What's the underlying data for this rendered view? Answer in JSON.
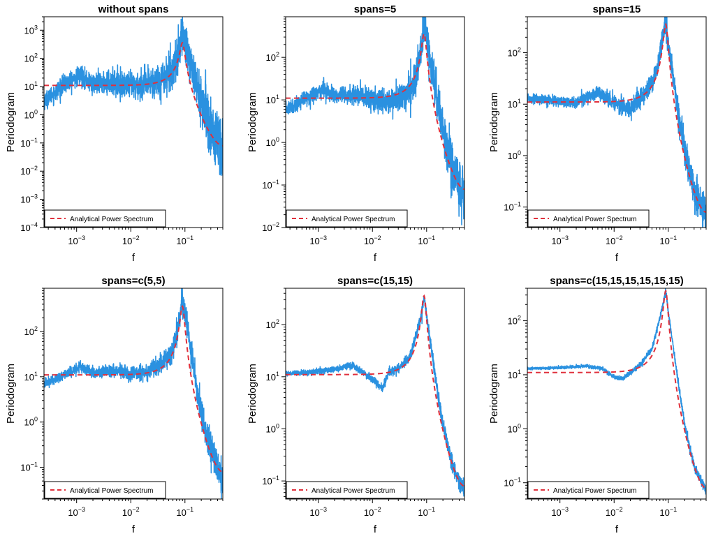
{
  "colors": {
    "periodogram": "#2a91e0",
    "analytical": "#e0303c",
    "axis": "#000000",
    "background": "#ffffff"
  },
  "chart_data": [
    {
      "type": "line",
      "title": "without spans",
      "xlabel": "f",
      "ylabel": "Periodogram",
      "x_scale": "log",
      "y_scale": "log",
      "xlim": [
        0.00025,
        0.5
      ],
      "ylim": [
        0.0001,
        3000
      ],
      "x_ticks": [
        {
          "base": "10",
          "exp": "−3",
          "value": 0.001
        },
        {
          "base": "10",
          "exp": "−2",
          "value": 0.01
        },
        {
          "base": "10",
          "exp": "−1",
          "value": 0.1
        }
      ],
      "y_ticks": [
        {
          "base": "10",
          "exp": "−4",
          "value": 0.0001
        },
        {
          "base": "10",
          "exp": "−3",
          "value": 0.001
        },
        {
          "base": "10",
          "exp": "−2",
          "value": 0.01
        },
        {
          "base": "10",
          "exp": "−1",
          "value": 0.1
        },
        {
          "base": "10",
          "exp": "0",
          "value": 1
        },
        {
          "base": "10",
          "exp": "1",
          "value": 10
        },
        {
          "base": "10",
          "exp": "2",
          "value": 100
        },
        {
          "base": "10",
          "exp": "3",
          "value": 1000
        }
      ],
      "legend": {
        "position": "bottom-left",
        "entries": [
          "Analytical Power Spectrum"
        ]
      },
      "noise_level": 1.0,
      "series": [
        {
          "name": "Analytical Power Spectrum",
          "style": "dashed",
          "curve": {
            "base": 11,
            "peak_f": 0.09,
            "peak_value": 320,
            "high_f_value": 0.09
          }
        },
        {
          "style": "solid",
          "x": [
            0.00025,
            0.0006,
            0.0012,
            0.002,
            0.005,
            0.01,
            0.02,
            0.04,
            0.06,
            0.08,
            0.09,
            0.1,
            0.15,
            0.2,
            0.3,
            0.5
          ],
          "values": [
            3,
            12,
            25,
            12,
            14,
            10,
            12,
            20,
            45,
            200,
            800,
            400,
            20,
            3,
            0.3,
            0.05
          ]
        }
      ]
    },
    {
      "type": "line",
      "title": "spans=5",
      "xlabel": "f",
      "ylabel": "Periodogram",
      "x_scale": "log",
      "y_scale": "log",
      "xlim": [
        0.00025,
        0.5
      ],
      "ylim": [
        0.01,
        900
      ],
      "x_ticks": [
        {
          "base": "10",
          "exp": "−3",
          "value": 0.001
        },
        {
          "base": "10",
          "exp": "−2",
          "value": 0.01
        },
        {
          "base": "10",
          "exp": "−1",
          "value": 0.1
        }
      ],
      "y_ticks": [
        {
          "base": "10",
          "exp": "−2",
          "value": 0.01
        },
        {
          "base": "10",
          "exp": "−1",
          "value": 0.1
        },
        {
          "base": "10",
          "exp": "0",
          "value": 1
        },
        {
          "base": "10",
          "exp": "1",
          "value": 10
        },
        {
          "base": "10",
          "exp": "2",
          "value": 100
        }
      ],
      "legend": {
        "position": "bottom-left",
        "entries": [
          "Analytical Power Spectrum"
        ]
      },
      "noise_level": 0.55,
      "series": [
        {
          "name": "Analytical Power Spectrum",
          "style": "dashed",
          "curve": {
            "base": 11,
            "peak_f": 0.09,
            "peak_value": 320,
            "high_f_value": 0.09
          }
        },
        {
          "style": "solid",
          "x": [
            0.00025,
            0.0006,
            0.0012,
            0.002,
            0.005,
            0.01,
            0.02,
            0.04,
            0.06,
            0.08,
            0.09,
            0.1,
            0.15,
            0.2,
            0.3,
            0.5
          ],
          "values": [
            6,
            11,
            18,
            12,
            13,
            10,
            9,
            12,
            25,
            150,
            600,
            300,
            15,
            2,
            0.25,
            0.05
          ]
        }
      ]
    },
    {
      "type": "line",
      "title": "spans=15",
      "xlabel": "f",
      "ylabel": "Periodogram",
      "x_scale": "log",
      "y_scale": "log",
      "xlim": [
        0.00025,
        0.5
      ],
      "ylim": [
        0.04,
        500
      ],
      "x_ticks": [
        {
          "base": "10",
          "exp": "−3",
          "value": 0.001
        },
        {
          "base": "10",
          "exp": "−2",
          "value": 0.01
        },
        {
          "base": "10",
          "exp": "−1",
          "value": 0.1
        }
      ],
      "y_ticks": [
        {
          "base": "10",
          "exp": "−1",
          "value": 0.1
        },
        {
          "base": "10",
          "exp": "0",
          "value": 1
        },
        {
          "base": "10",
          "exp": "1",
          "value": 10
        },
        {
          "base": "10",
          "exp": "2",
          "value": 100
        }
      ],
      "legend": {
        "position": "bottom-left",
        "entries": [
          "Analytical Power Spectrum"
        ]
      },
      "noise_level": 0.3,
      "series": [
        {
          "name": "Analytical Power Spectrum",
          "style": "dashed",
          "curve": {
            "base": 11,
            "peak_f": 0.09,
            "peak_value": 320,
            "high_f_value": 0.09
          }
        },
        {
          "style": "solid",
          "x": [
            0.00025,
            0.0006,
            0.0012,
            0.002,
            0.005,
            0.01,
            0.02,
            0.04,
            0.06,
            0.08,
            0.09,
            0.1,
            0.15,
            0.2,
            0.3,
            0.5
          ],
          "values": [
            13,
            12,
            11,
            11,
            17,
            11,
            8,
            18,
            40,
            200,
            400,
            150,
            8,
            1.2,
            0.2,
            0.07
          ]
        }
      ]
    },
    {
      "type": "line",
      "title": "spans=c(5,5)",
      "xlabel": "f",
      "ylabel": "Periodogram",
      "x_scale": "log",
      "y_scale": "log",
      "xlim": [
        0.00025,
        0.5
      ],
      "ylim": [
        0.02,
        900
      ],
      "x_ticks": [
        {
          "base": "10",
          "exp": "−3",
          "value": 0.001
        },
        {
          "base": "10",
          "exp": "−2",
          "value": 0.01
        },
        {
          "base": "10",
          "exp": "−1",
          "value": 0.1
        }
      ],
      "y_ticks": [
        {
          "base": "10",
          "exp": "−1",
          "value": 0.1
        },
        {
          "base": "10",
          "exp": "0",
          "value": 1
        },
        {
          "base": "10",
          "exp": "1",
          "value": 10
        },
        {
          "base": "10",
          "exp": "2",
          "value": 100
        }
      ],
      "legend": {
        "position": "bottom-left",
        "entries": [
          "Analytical Power Spectrum"
        ]
      },
      "noise_level": 0.35,
      "series": [
        {
          "name": "Analytical Power Spectrum",
          "style": "dashed",
          "curve": {
            "base": 11,
            "peak_f": 0.09,
            "peak_value": 320,
            "high_f_value": 0.09
          }
        },
        {
          "style": "solid",
          "x": [
            0.00025,
            0.0006,
            0.0012,
            0.002,
            0.005,
            0.01,
            0.02,
            0.04,
            0.06,
            0.08,
            0.09,
            0.1,
            0.15,
            0.2,
            0.3,
            0.5
          ],
          "values": [
            7,
            11,
            17,
            12,
            14,
            11,
            13,
            20,
            40,
            200,
            550,
            250,
            12,
            1.5,
            0.25,
            0.05
          ]
        }
      ]
    },
    {
      "type": "line",
      "title": "spans=c(15,15)",
      "xlabel": "f",
      "ylabel": "Periodogram",
      "x_scale": "log",
      "y_scale": "log",
      "xlim": [
        0.00025,
        0.5
      ],
      "ylim": [
        0.045,
        500
      ],
      "x_ticks": [
        {
          "base": "10",
          "exp": "−3",
          "value": 0.001
        },
        {
          "base": "10",
          "exp": "−2",
          "value": 0.01
        },
        {
          "base": "10",
          "exp": "−1",
          "value": 0.1
        }
      ],
      "y_ticks": [
        {
          "base": "10",
          "exp": "−1",
          "value": 0.1
        },
        {
          "base": "10",
          "exp": "0",
          "value": 1
        },
        {
          "base": "10",
          "exp": "1",
          "value": 10
        },
        {
          "base": "10",
          "exp": "2",
          "value": 100
        }
      ],
      "legend": {
        "position": "bottom-left",
        "entries": [
          "Analytical Power Spectrum"
        ]
      },
      "noise_level": 0.15,
      "series": [
        {
          "name": "Analytical Power Spectrum",
          "style": "dashed",
          "curve": {
            "base": 11,
            "peak_f": 0.09,
            "peak_value": 320,
            "high_f_value": 0.09
          }
        },
        {
          "style": "solid",
          "x": [
            0.00025,
            0.0006,
            0.0012,
            0.002,
            0.004,
            0.006,
            0.01,
            0.015,
            0.02,
            0.03,
            0.05,
            0.08,
            0.09,
            0.1,
            0.15,
            0.2,
            0.3,
            0.5
          ],
          "values": [
            11.5,
            12,
            13,
            14,
            17,
            13,
            9,
            6,
            12,
            14,
            25,
            150,
            340,
            150,
            8,
            1.2,
            0.2,
            0.06
          ]
        }
      ]
    },
    {
      "type": "line",
      "title": "spans=c(15,15,15,15,15,15)",
      "xlabel": "f",
      "ylabel": "Periodogram",
      "x_scale": "log",
      "y_scale": "log",
      "xlim": [
        0.00025,
        0.5
      ],
      "ylim": [
        0.05,
        400
      ],
      "x_ticks": [
        {
          "base": "10",
          "exp": "−3",
          "value": 0.001
        },
        {
          "base": "10",
          "exp": "−2",
          "value": 0.01
        },
        {
          "base": "10",
          "exp": "−1",
          "value": 0.1
        }
      ],
      "y_ticks": [
        {
          "base": "10",
          "exp": "−1",
          "value": 0.1
        },
        {
          "base": "10",
          "exp": "0",
          "value": 1
        },
        {
          "base": "10",
          "exp": "1",
          "value": 10
        },
        {
          "base": "10",
          "exp": "2",
          "value": 100
        }
      ],
      "legend": {
        "position": "bottom-left",
        "entries": [
          "Analytical Power Spectrum"
        ]
      },
      "noise_level": 0.08,
      "series": [
        {
          "name": "Analytical Power Spectrum",
          "style": "dashed",
          "curve": {
            "base": 11,
            "peak_f": 0.09,
            "peak_value": 320,
            "high_f_value": 0.09
          }
        },
        {
          "style": "solid",
          "x": [
            0.00025,
            0.001,
            0.003,
            0.006,
            0.01,
            0.015,
            0.02,
            0.03,
            0.05,
            0.08,
            0.09,
            0.1,
            0.15,
            0.2,
            0.3,
            0.5
          ],
          "values": [
            13,
            13.5,
            14.5,
            13,
            9,
            8.5,
            11,
            15,
            30,
            200,
            350,
            150,
            8,
            1.2,
            0.2,
            0.07
          ]
        }
      ]
    }
  ]
}
